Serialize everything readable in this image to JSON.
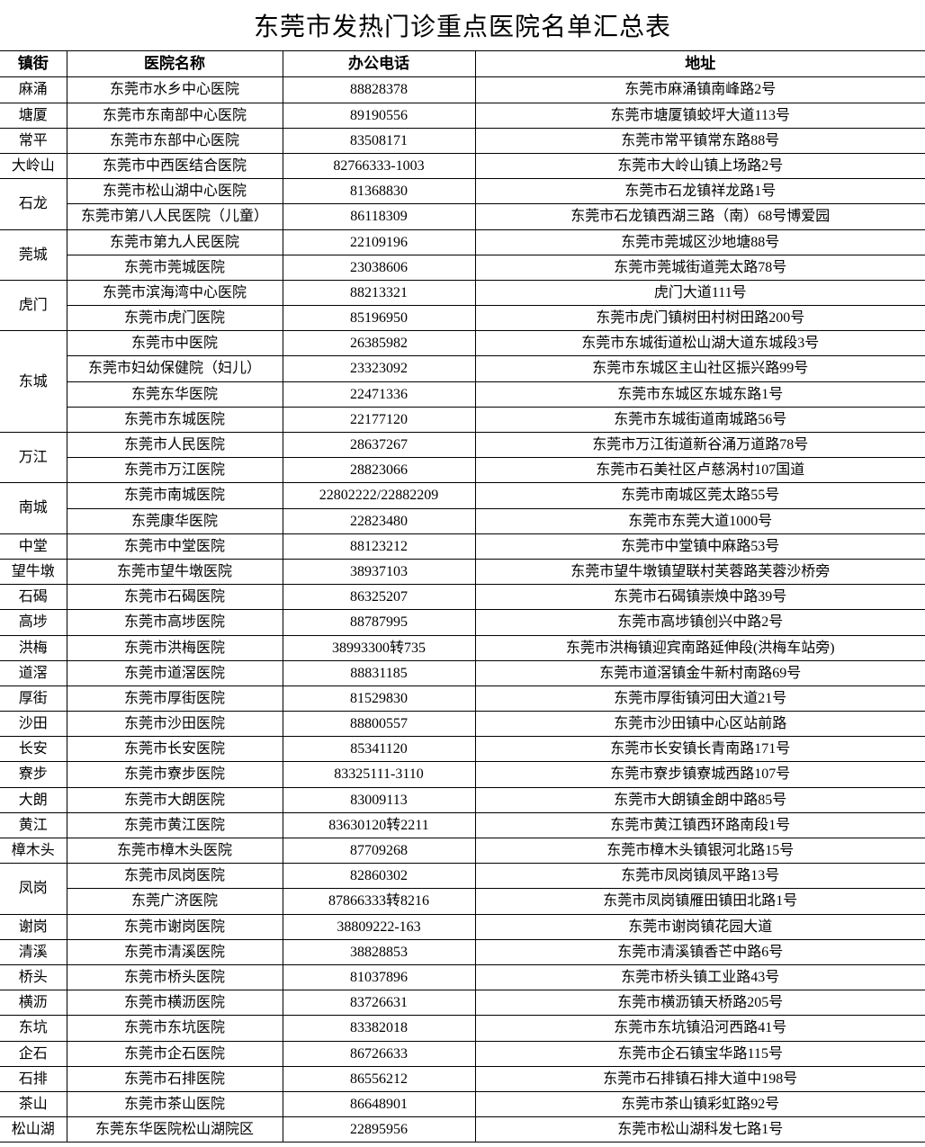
{
  "title": "东莞市发热门诊重点医院名单汇总表",
  "headers": {
    "town": "镇街",
    "hospital": "医院名称",
    "phone": "办公电话",
    "address": "地址"
  },
  "groups": [
    {
      "town": "麻涌",
      "hospitals": [
        {
          "name": "东莞市水乡中心医院",
          "phone": "88828378",
          "address": "东莞市麻涌镇南峰路2号"
        }
      ]
    },
    {
      "town": "塘厦",
      "hospitals": [
        {
          "name": "东莞市东南部中心医院",
          "phone": "89190556",
          "address": "东莞市塘厦镇蛟坪大道113号"
        }
      ]
    },
    {
      "town": "常平",
      "hospitals": [
        {
          "name": "东莞市东部中心医院",
          "phone": "83508171",
          "address": "东莞市常平镇常东路88号"
        }
      ]
    },
    {
      "town": "大岭山",
      "hospitals": [
        {
          "name": "东莞市中西医结合医院",
          "phone": "82766333-1003",
          "address": "东莞市大岭山镇上场路2号"
        }
      ]
    },
    {
      "town": "石龙",
      "hospitals": [
        {
          "name": "东莞市松山湖中心医院",
          "phone": "81368830",
          "address": "东莞市石龙镇祥龙路1号"
        },
        {
          "name": "东莞市第八人民医院（儿童）",
          "phone": "86118309",
          "address": "东莞市石龙镇西湖三路（南）68号博爱园"
        }
      ]
    },
    {
      "town": "莞城",
      "hospitals": [
        {
          "name": "东莞市第九人民医院",
          "phone": "22109196",
          "address": "东莞市莞城区沙地塘88号"
        },
        {
          "name": "东莞市莞城医院",
          "phone": "23038606",
          "address": "东莞市莞城街道莞太路78号"
        }
      ]
    },
    {
      "town": "虎门",
      "hospitals": [
        {
          "name": "东莞市滨海湾中心医院",
          "phone": "88213321",
          "address": "虎门大道111号"
        },
        {
          "name": "东莞市虎门医院",
          "phone": "85196950",
          "address": "东莞市虎门镇树田村树田路200号"
        }
      ]
    },
    {
      "town": "东城",
      "hospitals": [
        {
          "name": "东莞市中医院",
          "phone": "26385982",
          "address": "东莞市东城街道松山湖大道东城段3号"
        },
        {
          "name": "东莞市妇幼保健院（妇儿）",
          "phone": "23323092",
          "address": "东莞市东城区主山社区振兴路99号"
        },
        {
          "name": "东莞东华医院",
          "phone": "22471336",
          "address": "东莞市东城区东城东路1号"
        },
        {
          "name": "东莞市东城医院",
          "phone": "22177120",
          "address": "东莞市东城街道南城路56号"
        }
      ]
    },
    {
      "town": "万江",
      "hospitals": [
        {
          "name": "东莞市人民医院",
          "phone": "28637267",
          "address": "东莞市万江街道新谷涌万道路78号"
        },
        {
          "name": "东莞市万江医院",
          "phone": "28823066",
          "address": "东莞市石美社区卢慈涡村107国道"
        }
      ]
    },
    {
      "town": "南城",
      "hospitals": [
        {
          "name": "东莞市南城医院",
          "phone": "22802222/22882209",
          "address": "东莞市南城区莞太路55号"
        },
        {
          "name": "东莞康华医院",
          "phone": "22823480",
          "address": "东莞市东莞大道1000号"
        }
      ]
    },
    {
      "town": "中堂",
      "hospitals": [
        {
          "name": "东莞市中堂医院",
          "phone": "88123212",
          "address": "东莞市中堂镇中麻路53号"
        }
      ]
    },
    {
      "town": "望牛墩",
      "hospitals": [
        {
          "name": "东莞市望牛墩医院",
          "phone": "38937103",
          "address": "东莞市望牛墩镇望联村芙蓉路芙蓉沙桥旁"
        }
      ]
    },
    {
      "town": "石碣",
      "hospitals": [
        {
          "name": "东莞市石碣医院",
          "phone": "86325207",
          "address": "东莞市石碣镇崇焕中路39号"
        }
      ]
    },
    {
      "town": "高埗",
      "hospitals": [
        {
          "name": "东莞市高埗医院",
          "phone": "88787995",
          "address": "东莞市高埗镇创兴中路2号"
        }
      ]
    },
    {
      "town": "洪梅",
      "hospitals": [
        {
          "name": "东莞市洪梅医院",
          "phone": "38993300转735",
          "address": "东莞市洪梅镇迎宾南路延伸段(洪梅车站旁)"
        }
      ]
    },
    {
      "town": "道滘",
      "hospitals": [
        {
          "name": "东莞市道滘医院",
          "phone": "88831185",
          "address": "东莞市道滘镇金牛新村南路69号"
        }
      ]
    },
    {
      "town": "厚街",
      "hospitals": [
        {
          "name": "东莞市厚街医院",
          "phone": "81529830",
          "address": "东莞市厚街镇河田大道21号"
        }
      ]
    },
    {
      "town": "沙田",
      "hospitals": [
        {
          "name": "东莞市沙田医院",
          "phone": "88800557",
          "address": "东莞市沙田镇中心区站前路"
        }
      ]
    },
    {
      "town": "长安",
      "hospitals": [
        {
          "name": "东莞市长安医院",
          "phone": "85341120",
          "address": "东莞市长安镇长青南路171号"
        }
      ]
    },
    {
      "town": "寮步",
      "hospitals": [
        {
          "name": "东莞市寮步医院",
          "phone": "83325111-3110",
          "address": "东莞市寮步镇寮城西路107号"
        }
      ]
    },
    {
      "town": "大朗",
      "hospitals": [
        {
          "name": "东莞市大朗医院",
          "phone": "83009113",
          "address": "东莞市大朗镇金朗中路85号"
        }
      ]
    },
    {
      "town": "黄江",
      "hospitals": [
        {
          "name": "东莞市黄江医院",
          "phone": "83630120转2211",
          "address": "东莞市黄江镇西环路南段1号"
        }
      ]
    },
    {
      "town": "樟木头",
      "hospitals": [
        {
          "name": "东莞市樟木头医院",
          "phone": "87709268",
          "address": "东莞市樟木头镇银河北路15号"
        }
      ]
    },
    {
      "town": "凤岗",
      "hospitals": [
        {
          "name": "东莞市凤岗医院",
          "phone": "82860302",
          "address": "东莞市凤岗镇凤平路13号"
        },
        {
          "name": "东莞广济医院",
          "phone": "87866333转8216",
          "address": "东莞市凤岗镇雁田镇田北路1号"
        }
      ]
    },
    {
      "town": "谢岗",
      "hospitals": [
        {
          "name": "东莞市谢岗医院",
          "phone": "38809222-163",
          "address": "东莞市谢岗镇花园大道"
        }
      ]
    },
    {
      "town": "清溪",
      "hospitals": [
        {
          "name": "东莞市清溪医院",
          "phone": "38828853",
          "address": "东莞市清溪镇香芒中路6号"
        }
      ]
    },
    {
      "town": "桥头",
      "hospitals": [
        {
          "name": "东莞市桥头医院",
          "phone": "81037896",
          "address": "东莞市桥头镇工业路43号"
        }
      ]
    },
    {
      "town": "横沥",
      "hospitals": [
        {
          "name": "东莞市横沥医院",
          "phone": "83726631",
          "address": "东莞市横沥镇天桥路205号"
        }
      ]
    },
    {
      "town": "东坑",
      "hospitals": [
        {
          "name": "东莞市东坑医院",
          "phone": "83382018",
          "address": "东莞市东坑镇沿河西路41号"
        }
      ]
    },
    {
      "town": "企石",
      "hospitals": [
        {
          "name": "东莞市企石医院",
          "phone": "86726633",
          "address": "东莞市企石镇宝华路115号"
        }
      ]
    },
    {
      "town": "石排",
      "hospitals": [
        {
          "name": "东莞市石排医院",
          "phone": "86556212",
          "address": "东莞市石排镇石排大道中198号"
        }
      ]
    },
    {
      "town": "茶山",
      "hospitals": [
        {
          "name": "东莞市茶山医院",
          "phone": "86648901",
          "address": "东莞市茶山镇彩虹路92号"
        }
      ]
    },
    {
      "town": "松山湖",
      "hospitals": [
        {
          "name": "东莞东华医院松山湖院区",
          "phone": "22895956",
          "address": "东莞市松山湖科发七路1号"
        }
      ]
    }
  ]
}
